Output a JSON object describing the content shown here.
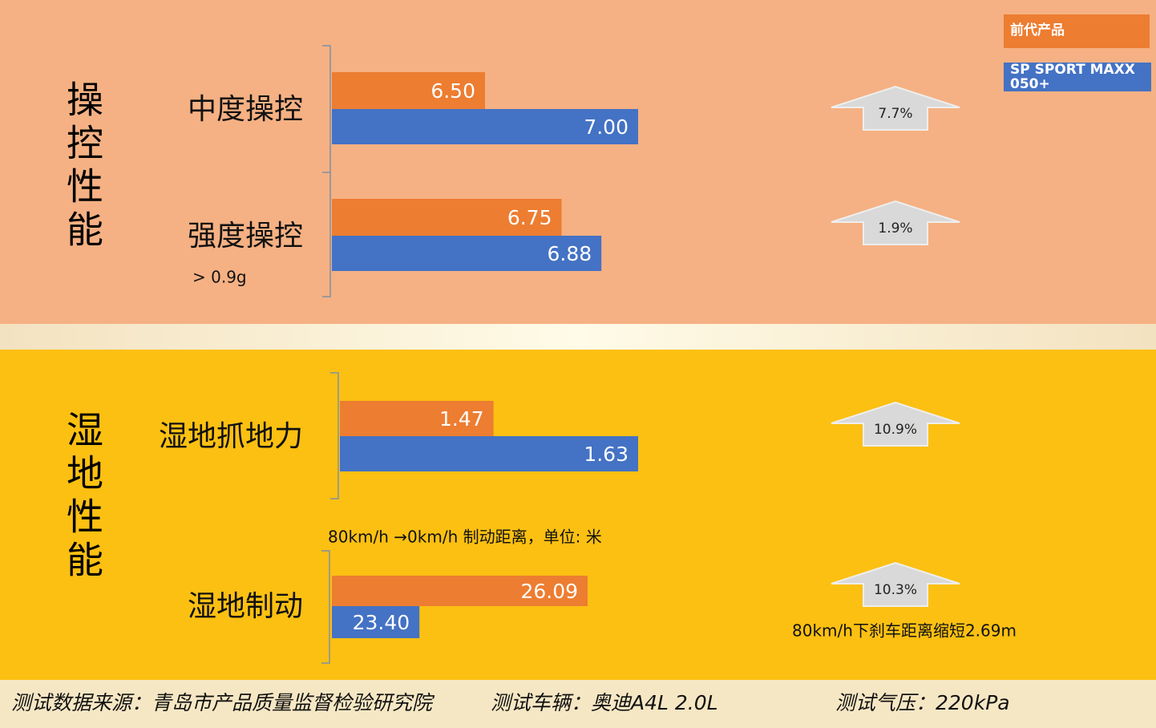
{
  "sections": [
    "操控性能",
    "湿地性能"
  ],
  "chart_data": [
    {
      "type": "bar",
      "orientation": "horizontal",
      "categories": [
        "中度操控",
        "强度操控"
      ],
      "annotations": [
        "> 0.9g"
      ],
      "series": [
        {
          "name": "前代产品",
          "color": "#ed7d31",
          "values": [
            6.5,
            6.75
          ],
          "value_labels": [
            "6.50",
            "6.75"
          ]
        },
        {
          "name": "SP SPORT MAXX 050+",
          "color": "#4472c4",
          "values": [
            7,
            6.88
          ],
          "value_labels": [
            "7.00",
            "6.88"
          ]
        }
      ],
      "xlim": [
        6,
        7
      ],
      "arrow_labels": [
        "7.7%",
        "1.9%"
      ]
    },
    {
      "type": "bar",
      "orientation": "horizontal",
      "categories": [
        "湿地抓地力"
      ],
      "series": [
        {
          "color": "#ed7d31",
          "values": [
            1.47
          ]
        },
        {
          "color": "#4472c4",
          "values": [
            1.63
          ]
        }
      ],
      "xlim": [
        1.3,
        1.63
      ],
      "arrow_labels": [
        "10.9%"
      ]
    },
    {
      "type": "bar",
      "orientation": "horizontal",
      "subtitle": "80km/h →0km/h 制动距离，单位: 米",
      "categories": [
        "湿地制动"
      ],
      "series": [
        {
          "color": "#ed7d31",
          "values": [
            26.09
          ]
        },
        {
          "color": "#4472c4",
          "values": [
            23.4
          ],
          "value_labels": [
            "23.40"
          ]
        }
      ],
      "xlim": [
        22,
        26.5
      ],
      "arrow_labels": [
        "10.3%"
      ],
      "note": "80km/h下刹车距离缩短2.69m"
    }
  ],
  "footer": [
    "测试数据来源：青岛市产品质量监督检验研究院",
    "测试车辆：奥迪A4L 2.0L",
    "测试气压：220kPa"
  ]
}
